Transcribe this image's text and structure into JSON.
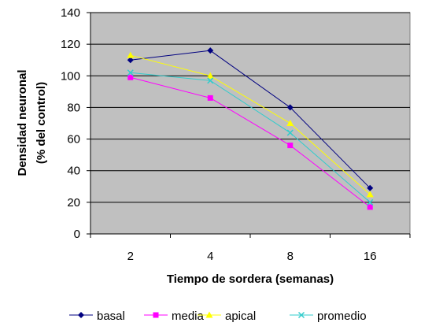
{
  "chart_data": {
    "type": "line",
    "categories": [
      "2",
      "4",
      "8",
      "16"
    ],
    "xlabel": "Tiempo de sordera (semanas)",
    "ylabel_lines": [
      "Densidad neuronal",
      "(% del control)"
    ],
    "ylim": [
      0,
      140
    ],
    "yticks": [
      "0",
      "20",
      "40",
      "60",
      "80",
      "100",
      "120",
      "140"
    ],
    "grid": true,
    "legend": "bottom",
    "series": [
      {
        "name": "basal",
        "color": "#000080",
        "marker": "diamond",
        "values": [
          110,
          116,
          80,
          29
        ]
      },
      {
        "name": "media",
        "color": "#ff00ff",
        "marker": "square",
        "values": [
          99,
          86,
          56,
          17
        ]
      },
      {
        "name": "apical",
        "color": "#ffff00",
        "marker": "triangle",
        "values": [
          113,
          100,
          70,
          25
        ]
      },
      {
        "name": "promedio",
        "color": "#33cccc",
        "marker": "x",
        "values": [
          102,
          97,
          64,
          20
        ]
      }
    ]
  }
}
